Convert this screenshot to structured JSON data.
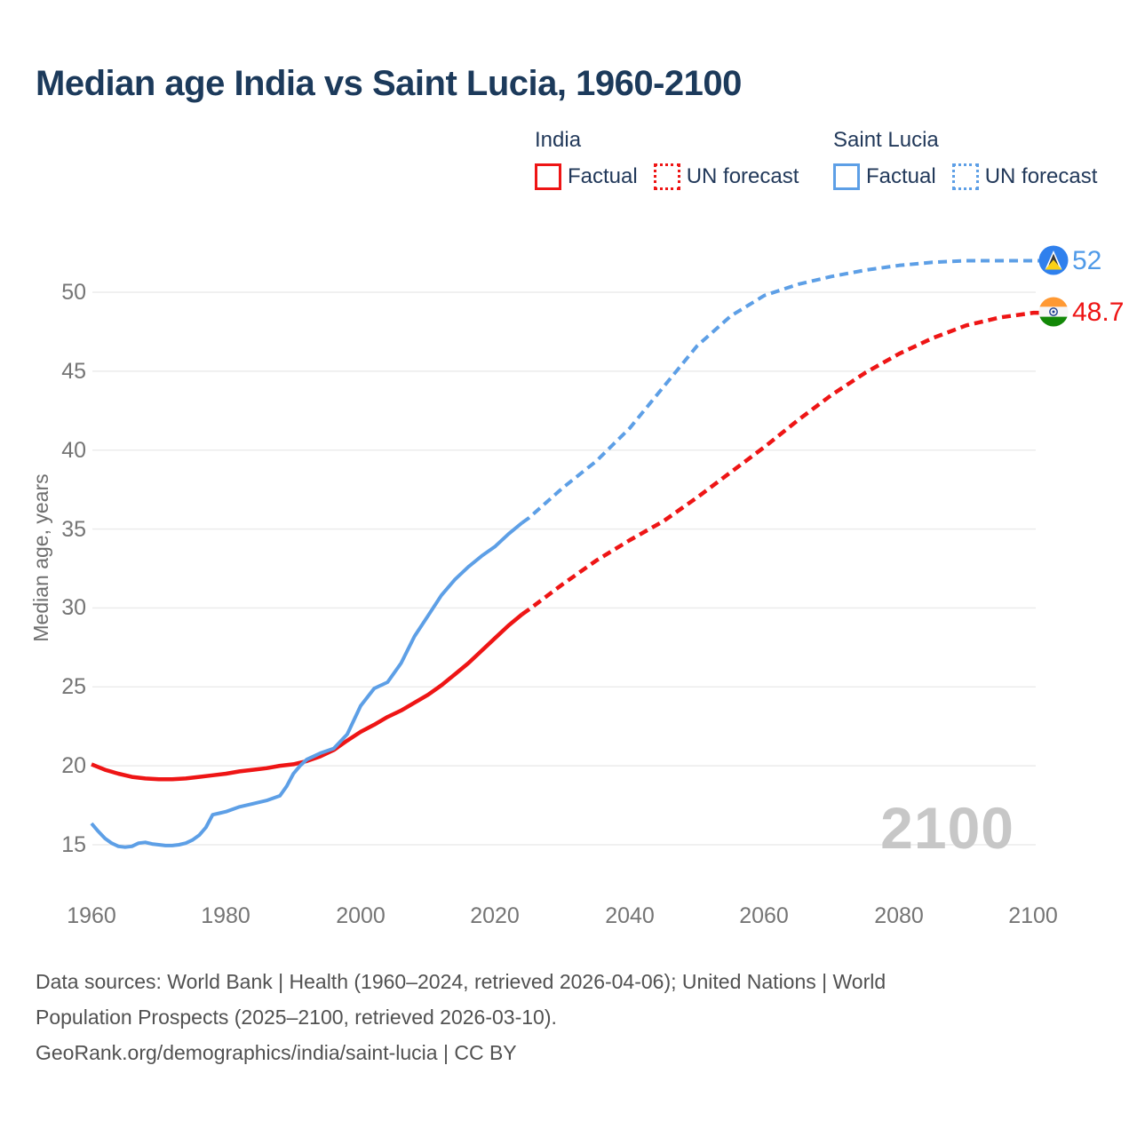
{
  "title": "Median age India vs Saint Lucia, 1960-2100",
  "legend": {
    "groups": [
      {
        "name": "India",
        "color": "#ee1515",
        "items": [
          {
            "label": "Factual",
            "line_style": "solid"
          },
          {
            "label": "UN forecast",
            "line_style": "dotted"
          }
        ]
      },
      {
        "name": "Saint Lucia",
        "color": "#5d9fe6",
        "items": [
          {
            "label": "Factual",
            "line_style": "solid"
          },
          {
            "label": "UN forecast",
            "line_style": "dotted"
          }
        ]
      }
    ]
  },
  "y_axis": {
    "title": "Median age, years",
    "ticks": [
      "15",
      "20",
      "25",
      "30",
      "35",
      "40",
      "45",
      "50"
    ]
  },
  "x_axis": {
    "ticks": [
      "1960",
      "1980",
      "2000",
      "2020",
      "2040",
      "2060",
      "2080",
      "2100"
    ]
  },
  "watermark": "2100",
  "end_labels": [
    {
      "country": "Saint Lucia",
      "value": "52",
      "flag_icon": "saint-lucia-flag",
      "color": "#4f9ae8"
    },
    {
      "country": "India",
      "value": "48.7",
      "flag_icon": "india-flag",
      "color": "#ee1515"
    }
  ],
  "footer": {
    "line1": "Data sources: World Bank | Health (1960–2024, retrieved 2026-04-06); United Nations | World",
    "line2": "Population Prospects (2025–2100, retrieved 2026-03-10).",
    "line3": "GeoRank.org/demographics/india/saint-lucia | CC BY"
  },
  "chart_data": {
    "type": "line",
    "title": "Median age India vs Saint Lucia, 1960-2100",
    "xlabel": "",
    "ylabel": "Median age, years",
    "xlim": [
      1957,
      2113
    ],
    "ylim": [
      13.2,
      53.6
    ],
    "grid": "horizontal",
    "legend_position": "top-right",
    "series": [
      {
        "name": "India — Factual",
        "color": "#ee1515",
        "style": "solid",
        "points": [
          [
            1960,
            20.1
          ],
          [
            1962,
            19.75
          ],
          [
            1964,
            19.5
          ],
          [
            1966,
            19.3
          ],
          [
            1968,
            19.2
          ],
          [
            1970,
            19.15
          ],
          [
            1972,
            19.15
          ],
          [
            1974,
            19.2
          ],
          [
            1976,
            19.3
          ],
          [
            1978,
            19.4
          ],
          [
            1980,
            19.5
          ],
          [
            1982,
            19.65
          ],
          [
            1984,
            19.75
          ],
          [
            1986,
            19.85
          ],
          [
            1988,
            20.0
          ],
          [
            1990,
            20.1
          ],
          [
            1992,
            20.3
          ],
          [
            1994,
            20.6
          ],
          [
            1996,
            21.0
          ],
          [
            1998,
            21.6
          ],
          [
            2000,
            22.15
          ],
          [
            2002,
            22.6
          ],
          [
            2004,
            23.1
          ],
          [
            2006,
            23.5
          ],
          [
            2008,
            24.0
          ],
          [
            2010,
            24.5
          ],
          [
            2012,
            25.1
          ],
          [
            2014,
            25.8
          ],
          [
            2016,
            26.5
          ],
          [
            2018,
            27.3
          ],
          [
            2020,
            28.1
          ],
          [
            2022,
            28.9
          ],
          [
            2024,
            29.6
          ]
        ]
      },
      {
        "name": "India — UN forecast",
        "color": "#ee1515",
        "style": "dashed",
        "points": [
          [
            2025,
            29.9
          ],
          [
            2030,
            31.5
          ],
          [
            2035,
            33.0
          ],
          [
            2040,
            34.3
          ],
          [
            2045,
            35.5
          ],
          [
            2050,
            37.0
          ],
          [
            2055,
            38.6
          ],
          [
            2060,
            40.2
          ],
          [
            2065,
            41.9
          ],
          [
            2070,
            43.5
          ],
          [
            2075,
            44.9
          ],
          [
            2080,
            46.1
          ],
          [
            2085,
            47.1
          ],
          [
            2090,
            47.9
          ],
          [
            2095,
            48.4
          ],
          [
            2100,
            48.7
          ]
        ]
      },
      {
        "name": "Saint Lucia — Factual",
        "color": "#5d9fe6",
        "style": "solid",
        "points": [
          [
            1960,
            16.35
          ],
          [
            1961,
            15.85
          ],
          [
            1962,
            15.4
          ],
          [
            1963,
            15.1
          ],
          [
            1964,
            14.9
          ],
          [
            1965,
            14.85
          ],
          [
            1966,
            14.9
          ],
          [
            1967,
            15.1
          ],
          [
            1968,
            15.15
          ],
          [
            1969,
            15.05
          ],
          [
            1970,
            15.0
          ],
          [
            1971,
            14.95
          ],
          [
            1972,
            14.95
          ],
          [
            1973,
            15.0
          ],
          [
            1974,
            15.1
          ],
          [
            1975,
            15.3
          ],
          [
            1976,
            15.6
          ],
          [
            1977,
            16.1
          ],
          [
            1978,
            16.9
          ],
          [
            1979,
            17.0
          ],
          [
            1980,
            17.1
          ],
          [
            1982,
            17.4
          ],
          [
            1984,
            17.6
          ],
          [
            1986,
            17.8
          ],
          [
            1988,
            18.1
          ],
          [
            1989,
            18.7
          ],
          [
            1990,
            19.5
          ],
          [
            1991,
            20.0
          ],
          [
            1992,
            20.4
          ],
          [
            1993,
            20.6
          ],
          [
            1994,
            20.8
          ],
          [
            1996,
            21.1
          ],
          [
            1998,
            22.0
          ],
          [
            2000,
            23.8
          ],
          [
            2002,
            24.9
          ],
          [
            2004,
            25.3
          ],
          [
            2006,
            26.5
          ],
          [
            2008,
            28.2
          ],
          [
            2010,
            29.5
          ],
          [
            2012,
            30.8
          ],
          [
            2014,
            31.8
          ],
          [
            2016,
            32.6
          ],
          [
            2018,
            33.3
          ],
          [
            2020,
            33.9
          ],
          [
            2022,
            34.7
          ],
          [
            2024,
            35.4
          ]
        ]
      },
      {
        "name": "Saint Lucia — UN forecast",
        "color": "#5d9fe6",
        "style": "dashed",
        "points": [
          [
            2025,
            35.7
          ],
          [
            2030,
            37.6
          ],
          [
            2035,
            39.3
          ],
          [
            2040,
            41.4
          ],
          [
            2045,
            44.0
          ],
          [
            2050,
            46.6
          ],
          [
            2055,
            48.5
          ],
          [
            2060,
            49.8
          ],
          [
            2065,
            50.5
          ],
          [
            2070,
            51.0
          ],
          [
            2075,
            51.4
          ],
          [
            2080,
            51.7
          ],
          [
            2085,
            51.9
          ],
          [
            2090,
            52.0
          ],
          [
            2095,
            52.0
          ],
          [
            2100,
            52.0
          ]
        ]
      }
    ],
    "end_values": [
      {
        "series": "Saint Lucia",
        "year": 2100,
        "value": 52
      },
      {
        "series": "India",
        "year": 2100,
        "value": 48.7
      }
    ]
  }
}
